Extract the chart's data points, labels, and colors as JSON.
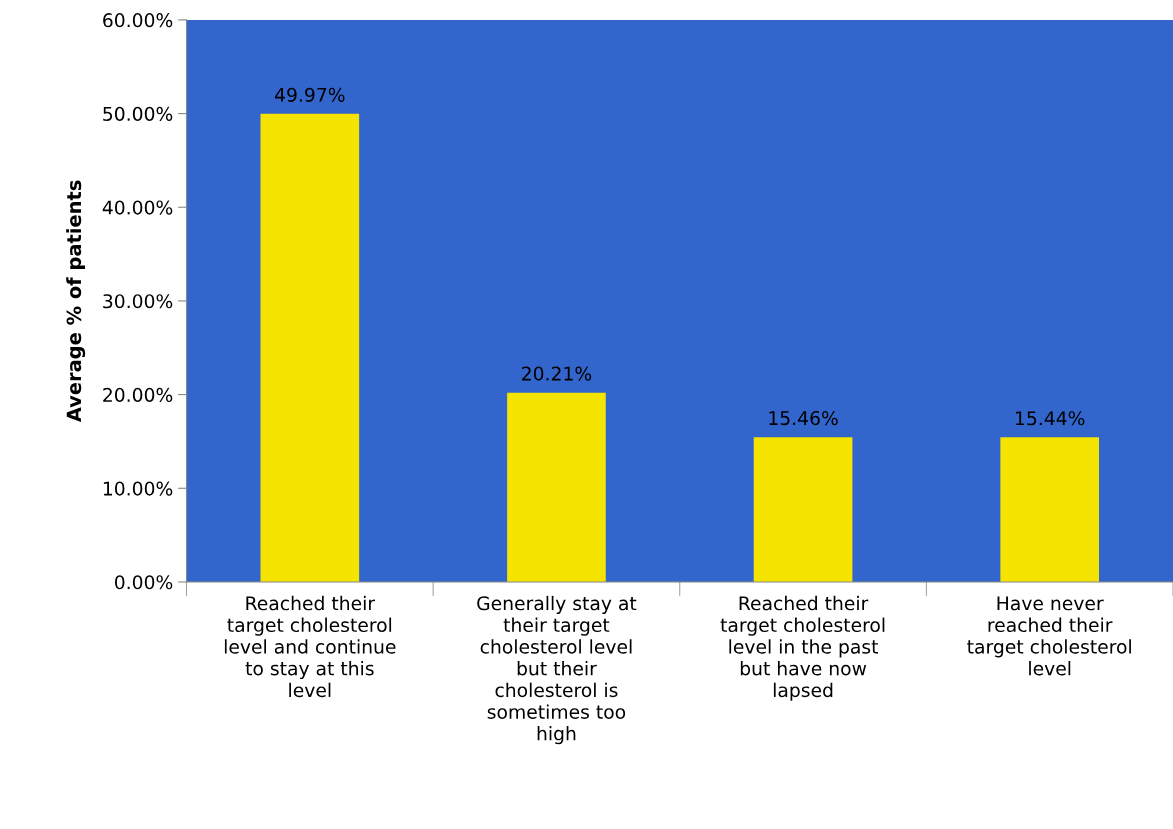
{
  "chart_data": {
    "type": "bar",
    "ylabel": "Average % of patients",
    "categories": [
      "Reached their\ntarget cholesterol\nlevel and continue\nto stay at this\nlevel",
      "Generally stay at\ntheir target\ncholesterol level\nbut their\ncholesterol is\nsometimes too\nhigh",
      "Reached their\ntarget cholesterol\nlevel in the past\nbut have now\nlapsed",
      "Have never\nreached their\ntarget cholesterol\nlevel"
    ],
    "values": [
      49.97,
      20.21,
      15.46,
      15.44
    ],
    "value_labels": [
      "49.97%",
      "20.21%",
      "15.46%",
      "15.44%"
    ],
    "color": "#f5e300",
    "ylim": [
      0,
      60
    ],
    "yticks": [
      {
        "value": 0,
        "label": "0.00%"
      },
      {
        "value": 10,
        "label": "10.00%"
      },
      {
        "value": 20,
        "label": "20.00%"
      },
      {
        "value": 30,
        "label": "30.00%"
      },
      {
        "value": 40,
        "label": "40.00%"
      },
      {
        "value": 50,
        "label": "50.00%"
      },
      {
        "value": 60,
        "label": "60.00%"
      }
    ],
    "grid": false,
    "legend": false
  }
}
